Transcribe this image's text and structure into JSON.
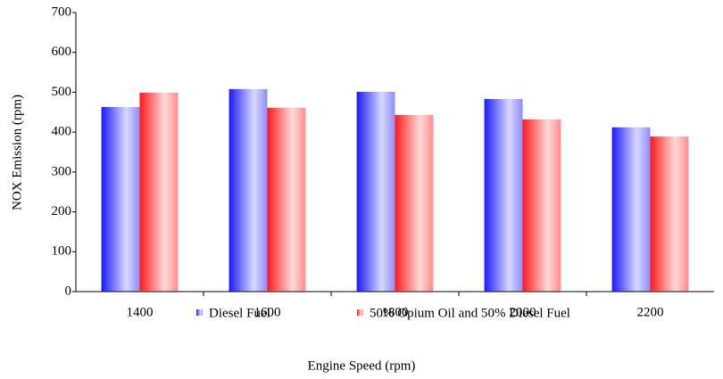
{
  "chart_data": {
    "type": "bar",
    "categories": [
      "1400",
      "1600",
      "1800",
      "2000",
      "2200"
    ],
    "series": [
      {
        "name": "Diesel Fuel",
        "color": "#0000ff",
        "values": [
          463,
          508,
          501,
          483,
          412
        ]
      },
      {
        "name": "50% Opium Oil and 50% Diesel Fuel",
        "color": "#ff0000",
        "values": [
          499,
          461,
          443,
          432,
          389
        ]
      }
    ],
    "xlabel": "Engine Speed (rpm)",
    "ylabel": "NOX Emission (rpm)",
    "ylim": [
      0,
      700
    ],
    "yticks": [
      0,
      100,
      200,
      300,
      400,
      500,
      600,
      700
    ],
    "grid": false,
    "legend": "bottom"
  }
}
